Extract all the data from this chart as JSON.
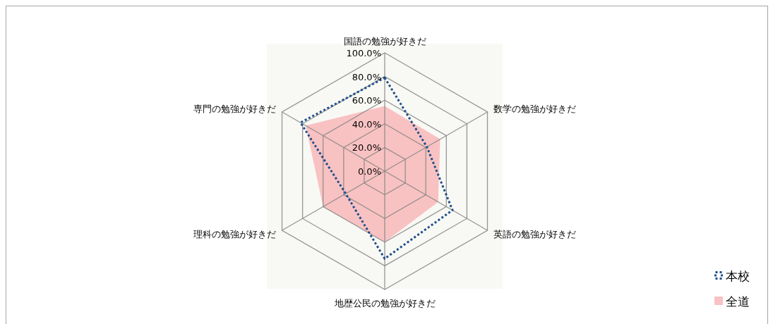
{
  "chart_data": {
    "type": "radar",
    "categories": [
      "国語の勉強が好きだ",
      "数学の勉強が好きだ",
      "英語の勉強が好きだ",
      "地歴公民の勉強が好きだ",
      "理科の勉強が好きだ",
      "専門の勉強が好きだ"
    ],
    "series": [
      {
        "name": "本校",
        "line_style": "dotted",
        "color": "#1f4e8c",
        "values": [
          79,
          41,
          66,
          74,
          38,
          82
        ]
      },
      {
        "name": "全道",
        "color": "#f9c2c2",
        "values": [
          55,
          54,
          52,
          60,
          60,
          77
        ]
      }
    ],
    "ylim": [
      0,
      100
    ],
    "yticks": [
      {
        "value": 0,
        "label": "0.0%"
      },
      {
        "value": 20,
        "label": "20.0%"
      },
      {
        "value": 40,
        "label": "40.0%"
      },
      {
        "value": 60,
        "label": "60.0%"
      },
      {
        "value": 80,
        "label": "80.0%"
      },
      {
        "value": 100,
        "label": "100.0%"
      }
    ],
    "grid": true,
    "legend": "bottom right"
  }
}
